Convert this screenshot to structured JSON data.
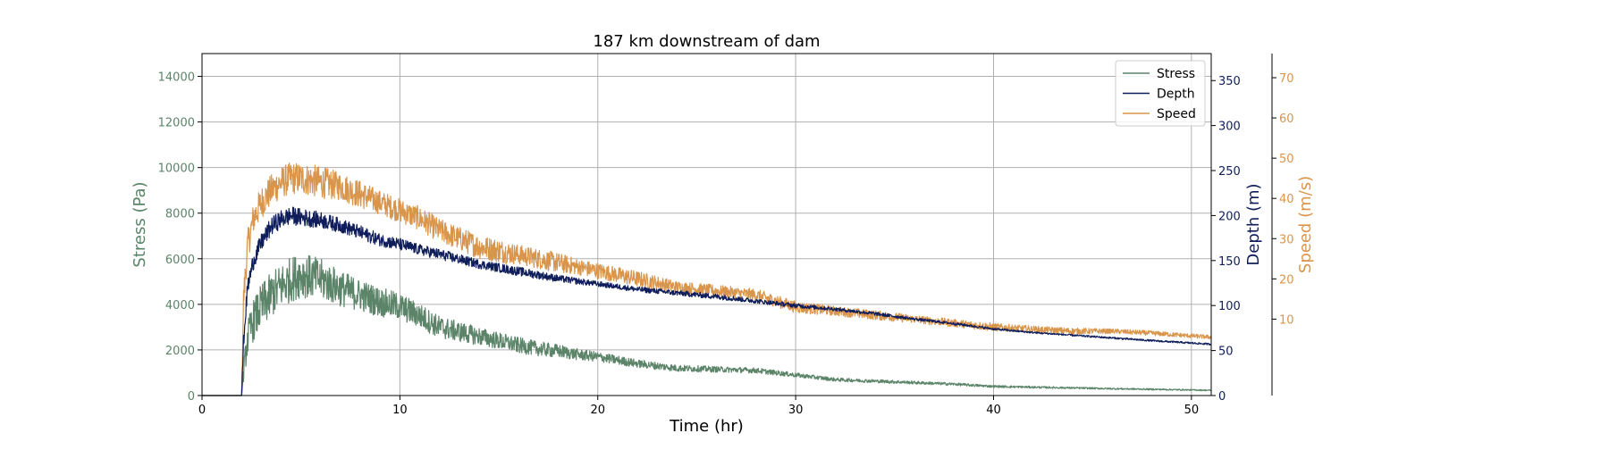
{
  "chart_data": {
    "type": "line",
    "title": "187 km downstream of dam",
    "xlabel": "Time (hr)",
    "xlim": [
      0,
      51
    ],
    "xticks": [
      0,
      10,
      20,
      30,
      40,
      50
    ],
    "grid": true,
    "legend_position": "top-right",
    "axes": {
      "stress": {
        "label": "Stress (Pa)",
        "ylim": [
          0,
          15000
        ],
        "ticks": [
          0,
          2000,
          4000,
          6000,
          8000,
          10000,
          12000,
          14000
        ],
        "color": "#5b8469"
      },
      "depth": {
        "label": "Depth (m)",
        "ylim": [
          0,
          380
        ],
        "ticks": [
          0,
          50,
          100,
          150,
          200,
          250,
          300,
          350
        ],
        "color": "#0f1e5a"
      },
      "speed": {
        "label": "Speed (m/s)",
        "ylim": [
          -9,
          76
        ],
        "ticks": [
          10,
          20,
          30,
          40,
          50,
          60,
          70
        ],
        "color": "#d9954b"
      }
    },
    "series": [
      {
        "name": "Stress",
        "axis": "stress",
        "color": "#5b8469",
        "x": [
          0,
          2.0,
          2.1,
          2.3,
          2.6,
          3.0,
          3.5,
          4.0,
          4.5,
          5.0,
          6,
          7,
          8,
          9,
          10,
          11,
          12,
          13,
          14,
          15,
          16,
          17,
          18,
          19,
          20,
          22,
          24,
          26,
          28,
          30,
          32,
          35,
          38,
          40,
          43,
          46,
          49,
          51
        ],
        "y": [
          0,
          0,
          1000,
          2500,
          3300,
          3900,
          4400,
          4800,
          5100,
          5300,
          5100,
          4700,
          4400,
          4100,
          3900,
          3500,
          3000,
          2800,
          2600,
          2400,
          2200,
          2050,
          1950,
          1800,
          1700,
          1400,
          1200,
          1150,
          1100,
          900,
          700,
          600,
          500,
          400,
          350,
          300,
          260,
          230
        ],
        "noise": [
          0,
          0,
          400,
          800,
          900,
          1000,
          1000,
          1000,
          1000,
          1000,
          900,
          800,
          700,
          650,
          600,
          550,
          500,
          450,
          400,
          380,
          350,
          320,
          300,
          250,
          220,
          180,
          150,
          130,
          120,
          100,
          80,
          70,
          60,
          50,
          40,
          35,
          30,
          25
        ]
      },
      {
        "name": "Depth",
        "axis": "depth",
        "color": "#0f1e5a",
        "x": [
          0,
          2.0,
          2.1,
          2.3,
          2.6,
          3.0,
          3.5,
          4.0,
          4.5,
          5.0,
          6,
          7,
          8,
          9,
          10,
          11,
          12,
          14,
          16,
          18,
          20,
          22,
          24,
          26,
          28,
          30,
          32,
          34,
          36,
          38,
          40,
          42,
          44,
          46,
          48,
          51
        ],
        "y": [
          0,
          0,
          60,
          120,
          150,
          170,
          188,
          196,
          200,
          198,
          195,
          189,
          181,
          173,
          168,
          162,
          157,
          146,
          138,
          130,
          124,
          118,
          114,
          110,
          105,
          100,
          96,
          91,
          85,
          80,
          74,
          70,
          67,
          64,
          61,
          57
        ],
        "noise": [
          0,
          0,
          8,
          10,
          10,
          10,
          10,
          10,
          10,
          10,
          9,
          8,
          8,
          7,
          7,
          6,
          6,
          5,
          5,
          4,
          3,
          3,
          3,
          3,
          2.5,
          2.5,
          2,
          2,
          1.5,
          1.5,
          1.2,
          1,
          1,
          1,
          1,
          1
        ]
      },
      {
        "name": "Speed",
        "axis": "speed",
        "color": "#d9954b",
        "x": [
          0,
          2.0,
          2.1,
          2.3,
          2.6,
          3.0,
          3.5,
          4.0,
          4.5,
          5.0,
          6,
          7,
          8,
          9,
          10,
          11,
          12,
          13,
          14,
          15,
          16,
          17,
          18,
          19,
          20,
          22,
          24,
          26,
          28,
          30,
          32,
          34,
          36,
          38,
          40,
          42,
          44,
          46,
          48,
          51
        ],
        "y": [
          -9,
          -9,
          15,
          28,
          35,
          39,
          42,
          44,
          45,
          45,
          44,
          43,
          41,
          39,
          37,
          35,
          32,
          30,
          28,
          27,
          26,
          25,
          24,
          23,
          22,
          20,
          18,
          17,
          16,
          13,
          12,
          11,
          10,
          9,
          8,
          7.5,
          7,
          7,
          6.5,
          5.5
        ],
        "noise": [
          0,
          0,
          4,
          4,
          4,
          4,
          4,
          4,
          4,
          4,
          4,
          3.5,
          3.5,
          3,
          3,
          3,
          3,
          3,
          3,
          3,
          2.5,
          2.5,
          2.5,
          2,
          2,
          2,
          1.5,
          1.5,
          1.5,
          1.5,
          1.2,
          1.2,
          1,
          1,
          1,
          0.8,
          0.8,
          0.6,
          0.6,
          0.5
        ]
      }
    ]
  }
}
